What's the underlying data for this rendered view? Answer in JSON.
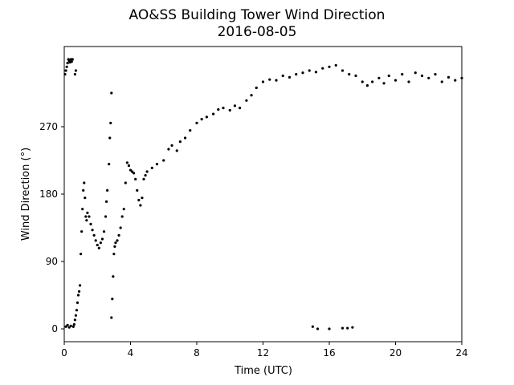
{
  "chart_data": {
    "type": "scatter",
    "title": "AO&SS Building Tower Wind Direction",
    "subtitle": "2016-08-05",
    "x_label": "Time (UTC)",
    "y_label": "Wind Direction (°)",
    "color": "#000000",
    "xlim": [
      0,
      24
    ],
    "xticks": [
      0,
      4,
      8,
      12,
      16,
      20,
      24
    ],
    "ylim": [
      -17.1,
      377.1
    ],
    "yticks": [
      0,
      90,
      180,
      270
    ],
    "grid": false,
    "x": [
      0.05,
      0.1,
      0.15,
      0.2,
      0.25,
      0.3,
      0.35,
      0.4,
      0.45,
      0.5,
      0.1,
      0.2,
      0.3,
      0.4,
      0.55,
      0.6,
      0.65,
      0.7,
      0.75,
      0.8,
      0.85,
      0.9,
      0.95,
      1.0,
      1.05,
      1.1,
      1.15,
      1.2,
      1.25,
      1.3,
      1.35,
      1.4,
      1.5,
      1.6,
      1.7,
      1.8,
      1.9,
      2.0,
      2.1,
      2.2,
      2.3,
      2.4,
      2.5,
      2.55,
      2.6,
      2.7,
      2.75,
      2.8,
      2.85,
      2.85,
      2.9,
      2.95,
      3.0,
      3.05,
      3.1,
      3.2,
      3.3,
      3.4,
      3.5,
      3.6,
      3.7,
      3.8,
      3.9,
      4.0,
      4.1,
      4.2,
      4.3,
      4.4,
      4.5,
      4.6,
      4.7,
      4.8,
      4.9,
      5.0,
      5.3,
      5.6,
      6.0,
      6.3,
      6.5,
      6.8,
      7.0,
      7.3,
      7.6,
      8.0,
      8.3,
      8.6,
      9.0,
      9.3,
      9.6,
      10.0,
      10.3,
      10.6,
      11.0,
      11.3,
      11.6,
      12.0,
      12.4,
      12.8,
      13.2,
      13.6,
      14.0,
      14.4,
      14.8,
      15.2,
      15.6,
      16.0,
      16.4,
      16.8,
      17.2,
      17.6,
      18.0,
      18.3,
      18.6,
      19.0,
      19.3,
      19.6,
      20.0,
      20.4,
      20.8,
      21.2,
      21.6,
      22.0,
      22.4,
      22.8,
      23.2,
      23.6,
      24.0,
      15.0,
      15.3,
      16.0,
      16.8,
      17.1,
      17.4,
      0.7,
      0.65
    ],
    "values": [
      340,
      345,
      350,
      355,
      360,
      358,
      356,
      360,
      357,
      360,
      3,
      5,
      2,
      4,
      3,
      6,
      12,
      18,
      25,
      35,
      45,
      50,
      58,
      100,
      130,
      160,
      185,
      195,
      175,
      150,
      145,
      155,
      150,
      140,
      132,
      125,
      118,
      112,
      108,
      115,
      120,
      130,
      150,
      170,
      185,
      220,
      255,
      275,
      315,
      15,
      40,
      70,
      100,
      110,
      115,
      118,
      125,
      135,
      150,
      160,
      195,
      222,
      218,
      212,
      210,
      208,
      200,
      185,
      172,
      165,
      175,
      200,
      205,
      210,
      215,
      220,
      225,
      240,
      245,
      238,
      250,
      255,
      265,
      275,
      280,
      283,
      287,
      293,
      295,
      292,
      298,
      295,
      305,
      312,
      322,
      330,
      333,
      332,
      338,
      336,
      340,
      342,
      345,
      343,
      348,
      350,
      352,
      345,
      340,
      338,
      330,
      325,
      330,
      335,
      328,
      338,
      332,
      340,
      330,
      342,
      338,
      335,
      340,
      330,
      336,
      332,
      335,
      3,
      0,
      0,
      1,
      1,
      2,
      345,
      340
    ]
  }
}
